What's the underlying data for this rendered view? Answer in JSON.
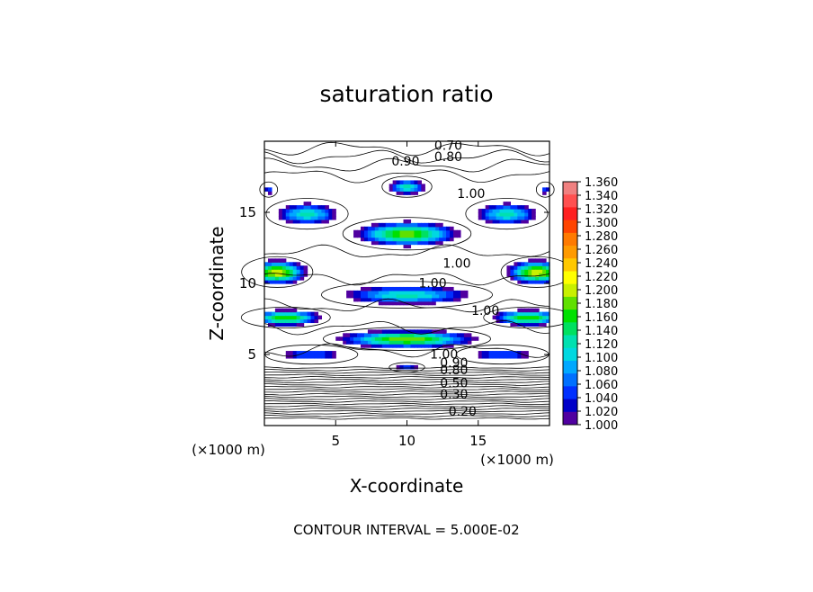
{
  "chart_data": {
    "type": "heatmap",
    "title": "saturation ratio",
    "xlabel": "X-coordinate",
    "ylabel": "Z-coordinate",
    "x_unit_label": "(×1000 m)",
    "z_unit_label": "(×1000 m)",
    "xlim": [
      0,
      20
    ],
    "ylim": [
      0,
      20
    ],
    "x_ticks": [
      5,
      10,
      15
    ],
    "y_ticks": [
      5,
      10,
      15
    ],
    "footer": "CONTOUR INTERVAL = 5.000E-02",
    "colorbar": {
      "min": 1.0,
      "max": 1.36,
      "labels": [
        "1.360",
        "1.340",
        "1.320",
        "1.300",
        "1.280",
        "1.260",
        "1.240",
        "1.220",
        "1.200",
        "1.180",
        "1.160",
        "1.140",
        "1.120",
        "1.100",
        "1.080",
        "1.060",
        "1.040",
        "1.020",
        "1.000"
      ],
      "colors": [
        "#f08080",
        "#ff5050",
        "#ff2020",
        "#ff4400",
        "#ff7a00",
        "#ff9a00",
        "#ffc800",
        "#ffff00",
        "#c8f000",
        "#60e000",
        "#00e000",
        "#00e060",
        "#00e0b0",
        "#00d8e0",
        "#00a8ff",
        "#0070ff",
        "#0030ff",
        "#0000c8",
        "#5000a0"
      ]
    },
    "contour_labels": [
      {
        "text": "0.70",
        "x": 12.9,
        "z": 19.4
      },
      {
        "text": "0.80",
        "x": 12.9,
        "z": 18.6
      },
      {
        "text": "0.90",
        "x": 9.9,
        "z": 18.3
      },
      {
        "text": "1.00",
        "x": 14.5,
        "z": 16.0
      },
      {
        "text": "1.00",
        "x": 13.5,
        "z": 11.1
      },
      {
        "text": "1.00",
        "x": 11.8,
        "z": 9.7
      },
      {
        "text": "1.00",
        "x": 15.5,
        "z": 7.8
      },
      {
        "text": "1.00",
        "x": 12.6,
        "z": 4.7
      },
      {
        "text": "0.90",
        "x": 13.3,
        "z": 4.1
      },
      {
        "text": "0.80",
        "x": 13.3,
        "z": 3.6
      },
      {
        "text": "0.50",
        "x": 13.3,
        "z": 2.7
      },
      {
        "text": "0.30",
        "x": 13.3,
        "z": 1.9
      },
      {
        "text": "0.20",
        "x": 13.9,
        "z": 0.7
      }
    ],
    "field_blobs": [
      {
        "x": 10.0,
        "z": 16.8,
        "sx": 1.4,
        "sz": 0.55,
        "peak": 1.13
      },
      {
        "x": 3.0,
        "z": 14.9,
        "sx": 2.3,
        "sz": 0.8,
        "peak": 1.13
      },
      {
        "x": 17.0,
        "z": 14.9,
        "sx": 2.3,
        "sz": 0.8,
        "peak": 1.13
      },
      {
        "x": 0.3,
        "z": 16.6,
        "sx": 0.5,
        "sz": 0.4,
        "peak": 1.05
      },
      {
        "x": 19.7,
        "z": 16.6,
        "sx": 0.5,
        "sz": 0.4,
        "peak": 1.05
      },
      {
        "x": 10.0,
        "z": 13.5,
        "sx": 3.6,
        "sz": 0.85,
        "peak": 1.19
      },
      {
        "x": 0.9,
        "z": 10.8,
        "sx": 2.0,
        "sz": 0.8,
        "peak": 1.22
      },
      {
        "x": 19.1,
        "z": 10.8,
        "sx": 2.0,
        "sz": 0.8,
        "peak": 1.22
      },
      {
        "x": 10.0,
        "z": 9.2,
        "sx": 4.8,
        "sz": 0.7,
        "peak": 1.13
      },
      {
        "x": 1.5,
        "z": 7.6,
        "sx": 2.5,
        "sz": 0.55,
        "peak": 1.18
      },
      {
        "x": 18.5,
        "z": 7.6,
        "sx": 2.5,
        "sz": 0.55,
        "peak": 1.18
      },
      {
        "x": 10.0,
        "z": 6.1,
        "sx": 4.7,
        "sz": 0.6,
        "peak": 1.2
      },
      {
        "x": 3.3,
        "z": 5.0,
        "sx": 2.6,
        "sz": 0.5,
        "peak": 1.07
      },
      {
        "x": 16.7,
        "z": 5.0,
        "sx": 2.6,
        "sz": 0.5,
        "peak": 1.07
      },
      {
        "x": 10.0,
        "z": 4.1,
        "sx": 1.0,
        "sz": 0.25,
        "peak": 1.06
      }
    ]
  }
}
